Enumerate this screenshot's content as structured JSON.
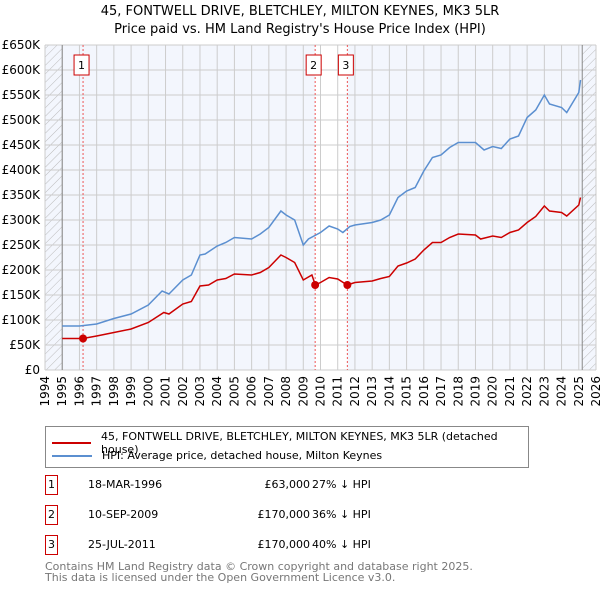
{
  "chart_data": {
    "type": "line",
    "title": "45, FONTWELL DRIVE, BLETCHLEY, MILTON KEYNES, MK3 5LR",
    "subtitle": "Price paid vs. HM Land Registry's House Price Index (HPI)",
    "xlim": [
      1994,
      2026
    ],
    "ylim": [
      0,
      650
    ],
    "x_ticks": [
      "1994",
      "1995",
      "1996",
      "1997",
      "1998",
      "1999",
      "2000",
      "2001",
      "2002",
      "2003",
      "2004",
      "2005",
      "2006",
      "2007",
      "2008",
      "2009",
      "2010",
      "2011",
      "2012",
      "2013",
      "2014",
      "2015",
      "2016",
      "2017",
      "2018",
      "2019",
      "2020",
      "2021",
      "2022",
      "2023",
      "2024",
      "2025",
      "2026"
    ],
    "y_ticks": [
      "£0",
      "£50K",
      "£100K",
      "£150K",
      "£200K",
      "£250K",
      "£300K",
      "£350K",
      "£400K",
      "£450K",
      "£500K",
      "£550K",
      "£600K",
      "£650K"
    ],
    "grid": true,
    "series": [
      {
        "name": "45, FONTWELL DRIVE, BLETCHLEY, MILTON KEYNES, MK3 5LR (detached house)",
        "color": "#cc0000",
        "x": [
          1995,
          1996.2,
          1997,
          1998,
          1999,
          2000,
          2000.9,
          2001.2,
          2002,
          2002.5,
          2003,
          2003.5,
          2004,
          2004.5,
          2005,
          2006,
          2006.5,
          2007,
          2007.7,
          2008,
          2008.5,
          2009,
          2009.5,
          2009.7,
          2010,
          2010.5,
          2011,
          2011.55,
          2012,
          2013,
          2013.5,
          2014,
          2014.5,
          2015,
          2015.5,
          2016,
          2016.5,
          2017,
          2017.5,
          2018,
          2019,
          2019.3,
          2020,
          2020.5,
          2021,
          2021.5,
          2022,
          2022.5,
          2023,
          2023.3,
          2024,
          2024.3,
          2025,
          2025.1
        ],
        "y": [
          63,
          63,
          68,
          75,
          82,
          95,
          115,
          112,
          132,
          137,
          168,
          170,
          180,
          183,
          192,
          190,
          195,
          205,
          230,
          225,
          215,
          180,
          190,
          170,
          175,
          185,
          182,
          170,
          175,
          178,
          183,
          187,
          208,
          214,
          222,
          240,
          255,
          255,
          265,
          272,
          270,
          262,
          268,
          265,
          275,
          280,
          295,
          307,
          328,
          318,
          315,
          308,
          330,
          345
        ]
      },
      {
        "name": "HPI: Average price, detached house, Milton Keynes",
        "color": "#5b8fd0",
        "x": [
          1995,
          1996,
          1997,
          1998,
          1999,
          2000,
          2000.8,
          2001.2,
          2002,
          2002.5,
          2003,
          2003.3,
          2004,
          2004.5,
          2005,
          2006,
          2006.5,
          2007,
          2007.7,
          2008,
          2008.5,
          2009,
          2009.3,
          2010,
          2010.5,
          2011,
          2011.3,
          2011.7,
          2012,
          2013,
          2013.5,
          2014,
          2014.5,
          2015,
          2015.5,
          2016,
          2016.5,
          2017,
          2017.5,
          2018,
          2019,
          2019.5,
          2020,
          2020.5,
          2021,
          2021.5,
          2022,
          2022.5,
          2023,
          2023.3,
          2024,
          2024.3,
          2025,
          2025.1
        ],
        "y": [
          88,
          88,
          92,
          103,
          112,
          130,
          158,
          152,
          180,
          190,
          230,
          232,
          248,
          255,
          265,
          262,
          272,
          285,
          318,
          310,
          300,
          250,
          262,
          275,
          288,
          282,
          275,
          287,
          290,
          295,
          300,
          310,
          345,
          358,
          365,
          398,
          425,
          430,
          445,
          455,
          455,
          440,
          447,
          443,
          462,
          468,
          505,
          520,
          550,
          532,
          525,
          515,
          555,
          580
        ]
      }
    ],
    "sales": [
      {
        "num": "1",
        "x": 1996.21,
        "price": 63,
        "date": "18-MAR-1996",
        "price_label": "£63,000",
        "hpi": "27% ↓ HPI"
      },
      {
        "num": "2",
        "x": 2009.69,
        "price": 170,
        "date": "10-SEP-2009",
        "price_label": "£170,000",
        "hpi": "36% ↓ HPI"
      },
      {
        "num": "3",
        "x": 2011.56,
        "price": 170,
        "date": "25-JUL-2011",
        "price_label": "£170,000",
        "hpi": "40% ↓ HPI"
      }
    ],
    "legend_position": "bottom"
  },
  "footer": {
    "line1": "Contains HM Land Registry data © Crown copyright and database right 2025.",
    "line2": "This data is licensed under the Open Government Licence v3.0."
  }
}
